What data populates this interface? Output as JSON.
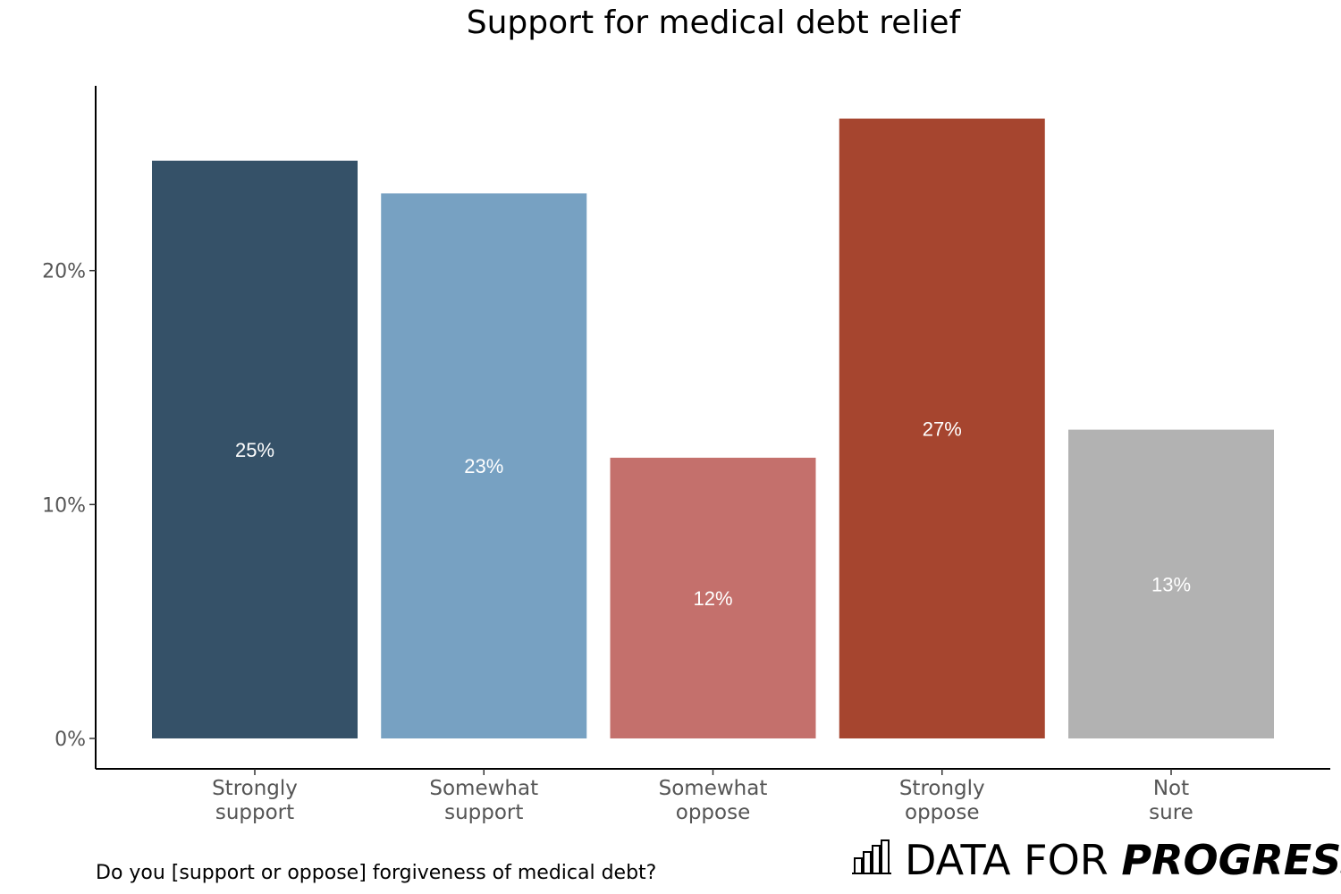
{
  "chart_data": {
    "type": "bar",
    "title": "Support for medical debt relief",
    "caption": "Do you [support or oppose] forgiveness of medical debt?",
    "categories": [
      [
        "Strongly",
        "support"
      ],
      [
        "Somewhat",
        "support"
      ],
      [
        "Somewhat",
        "oppose"
      ],
      [
        "Strongly",
        "oppose"
      ],
      [
        "Not",
        "sure"
      ]
    ],
    "values": [
      24.7,
      23.3,
      12.0,
      26.5,
      13.2
    ],
    "data_labels": [
      "25%",
      "23%",
      "12%",
      "27%",
      "13%"
    ],
    "colors": [
      "#355168",
      "#77a1c2",
      "#c4706c",
      "#a6452f",
      "#b2b2b2"
    ],
    "y_ticks": [
      {
        "value": 0,
        "label": "0%"
      },
      {
        "value": 10,
        "label": "10%"
      },
      {
        "value": 20,
        "label": "20%"
      }
    ],
    "ylim": [
      -1.3,
      27.9
    ],
    "xlabel": "",
    "ylabel": "",
    "grid": false,
    "legend": "none"
  },
  "branding": {
    "logo_light": "DATA FOR ",
    "logo_bold": "PROGRESS",
    "logo_icon": "bar-chart-icon"
  }
}
